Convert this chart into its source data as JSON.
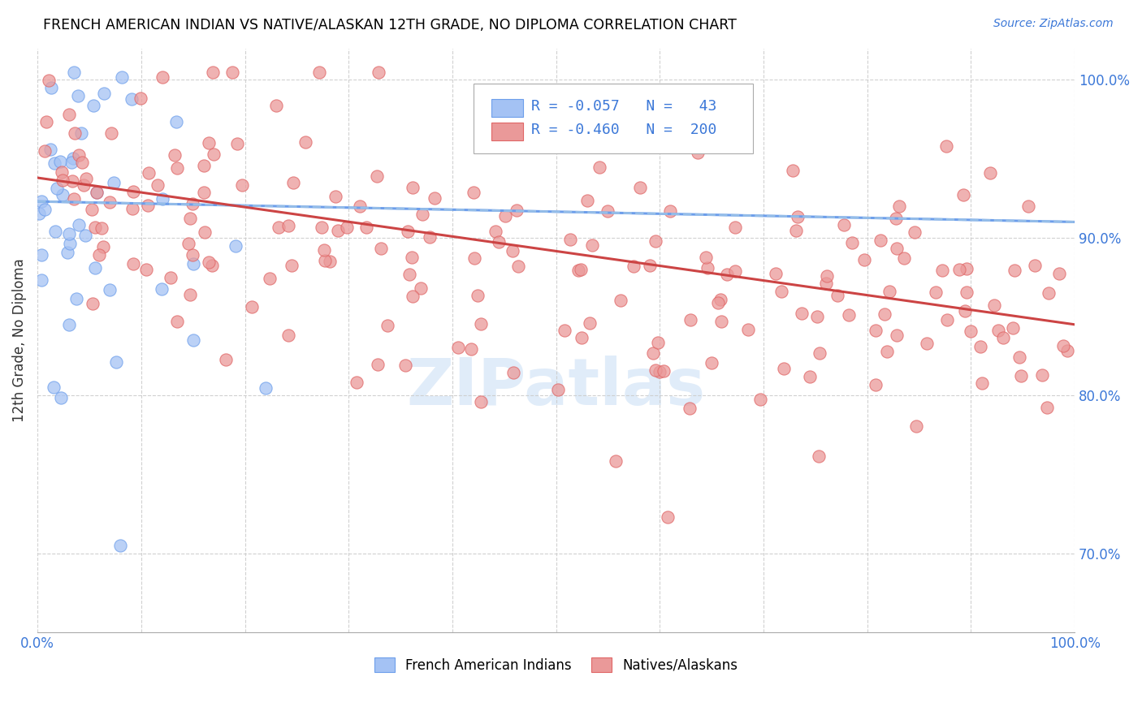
{
  "title": "FRENCH AMERICAN INDIAN VS NATIVE/ALASKAN 12TH GRADE, NO DIPLOMA CORRELATION CHART",
  "source": "Source: ZipAtlas.com",
  "ylabel": "12th Grade, No Diploma",
  "legend_blue_label": "French American Indians",
  "legend_pink_label": "Natives/Alaskans",
  "r_blue": "-0.057",
  "n_blue": 43,
  "r_pink": "-0.460",
  "n_pink": 200,
  "blue_fill": "#a4c2f4",
  "blue_edge": "#6d9eeb",
  "pink_fill": "#ea9999",
  "pink_edge": "#e06666",
  "blue_trend_color": "#6d9eeb",
  "pink_trend_color": "#cc4444",
  "blue_line_style": "-",
  "pink_line_style": "-",
  "xlim": [
    0,
    100
  ],
  "ylim": [
    65,
    102
  ],
  "ytick_positions": [
    70,
    80,
    90,
    100
  ],
  "blue_trend_start": 92.3,
  "blue_trend_end": 91.0,
  "pink_trend_start": 93.8,
  "pink_trend_end": 84.5
}
